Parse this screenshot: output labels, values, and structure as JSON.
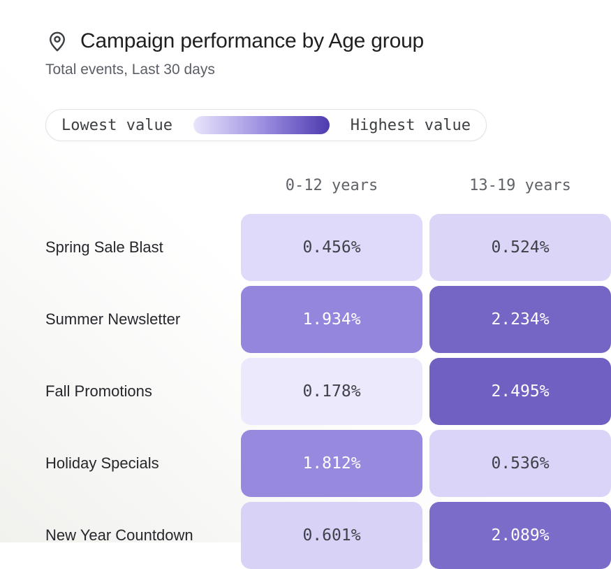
{
  "header": {
    "icon": "location-pin-icon",
    "title": "Campaign performance by Age group",
    "subtitle": "Total events, Last 30 days"
  },
  "legend": {
    "low": "Lowest value",
    "high": "Highest value",
    "gradient_start": "#E9E5FB",
    "gradient_mid": "#9E90E2",
    "gradient_end": "#4E3AAF"
  },
  "columns": [
    "0-12 years",
    "13-19 years"
  ],
  "rows": [
    {
      "label": "Spring Sale Blast",
      "cells": [
        {
          "display": "0.456%",
          "bg": "#DFDAF9",
          "fg": "#3E4147"
        },
        {
          "display": "0.524%",
          "bg": "#DBD5F8",
          "fg": "#3E4147"
        }
      ]
    },
    {
      "label": "Summer Newsletter",
      "cells": [
        {
          "display": "1.934%",
          "bg": "#9386DC",
          "fg": "#FFFFFF"
        },
        {
          "display": "2.234%",
          "bg": "#7566C6",
          "fg": "#FFFFFF"
        }
      ]
    },
    {
      "label": "Fall Promotions",
      "cells": [
        {
          "display": "0.178%",
          "bg": "#ECE9FC",
          "fg": "#3E4147"
        },
        {
          "display": "2.495%",
          "bg": "#6F60C2",
          "fg": "#FFFFFF"
        }
      ]
    },
    {
      "label": "Holiday Specials",
      "cells": [
        {
          "display": "1.812%",
          "bg": "#9689DE",
          "fg": "#FFFFFF"
        },
        {
          "display": "0.536%",
          "bg": "#DAD4F8",
          "fg": "#3E4147"
        }
      ]
    },
    {
      "label": "New Year Countdown",
      "cells": [
        {
          "display": "0.601%",
          "bg": "#D8D2F7",
          "fg": "#3E4147"
        },
        {
          "display": "2.089%",
          "bg": "#7B6CCA",
          "fg": "#FFFFFF"
        }
      ]
    }
  ],
  "chart_data": {
    "type": "heatmap",
    "title": "Campaign performance by Age group",
    "subtitle": "Total events, Last 30 days",
    "columns": [
      "0-12 years",
      "13-19 years"
    ],
    "rows": [
      "Spring Sale Blast",
      "Summer Newsletter",
      "Fall Promotions",
      "Holiday Specials",
      "New Year Countdown"
    ],
    "values": [
      [
        0.456,
        0.524
      ],
      [
        1.934,
        2.234
      ],
      [
        0.178,
        2.495
      ],
      [
        1.812,
        0.536
      ],
      [
        0.601,
        2.089
      ]
    ],
    "unit": "%",
    "value_range": [
      0.178,
      2.495
    ],
    "color_scale": {
      "low": "#ECE9FC",
      "high": "#4E3AAF"
    },
    "legend": {
      "low_label": "Lowest value",
      "high_label": "Highest value",
      "position": "top"
    }
  }
}
